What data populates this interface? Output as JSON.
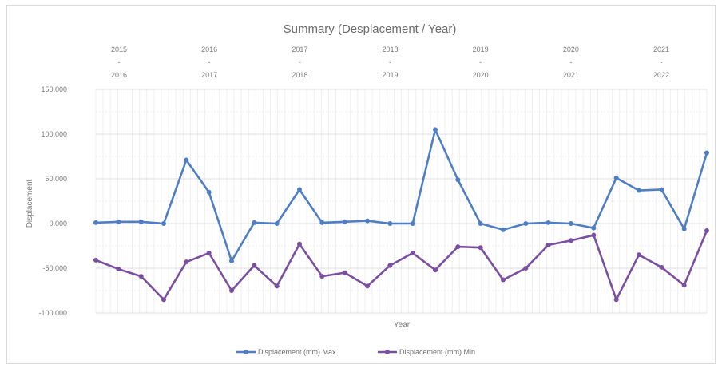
{
  "chart_data": {
    "type": "line",
    "title": "Summary (Desplacement / Year)",
    "xlabel": "Year",
    "ylabel": "Displacement",
    "ylim": [
      -100,
      150
    ],
    "yticks": [
      "150.000",
      "100.000",
      "50.000",
      "0.000",
      "-50.000",
      "-100.000"
    ],
    "ytick_values": [
      150,
      100,
      50,
      0,
      -50,
      -100
    ],
    "grid": true,
    "legend_position": "bottom",
    "period_groups": [
      {
        "start": "2015",
        "sep": "-",
        "end": "2016"
      },
      {
        "start": "2016",
        "sep": "-",
        "end": "2017"
      },
      {
        "start": "2017",
        "sep": "-",
        "end": "2018"
      },
      {
        "start": "2018",
        "sep": "-",
        "end": "2019"
      },
      {
        "start": "2019",
        "sep": "-",
        "end": "2020"
      },
      {
        "start": "2020",
        "sep": "-",
        "end": "2021"
      },
      {
        "start": "2021",
        "sep": "-",
        "end": "2022"
      }
    ],
    "series": [
      {
        "name": "Displacement (mm) Max",
        "color": "#4f7ec4",
        "values": [
          1,
          2,
          2,
          0,
          71,
          35,
          -42,
          1,
          0,
          38,
          1,
          2,
          3,
          0,
          0,
          105,
          49,
          0,
          -7,
          0,
          1,
          0,
          -5,
          51,
          37,
          38,
          -6,
          79
        ]
      },
      {
        "name": "Displacement (mm) Min",
        "color": "#7b4fa0",
        "values": [
          -41,
          -51,
          -59,
          -85,
          -43,
          -33,
          -75,
          -47,
          -70,
          -23,
          -59,
          -55,
          -70,
          -47,
          -33,
          -52,
          -26,
          -27,
          -63,
          -50,
          -24,
          -19,
          -13,
          -85,
          -35,
          -49,
          -69,
          -8
        ]
      }
    ]
  }
}
